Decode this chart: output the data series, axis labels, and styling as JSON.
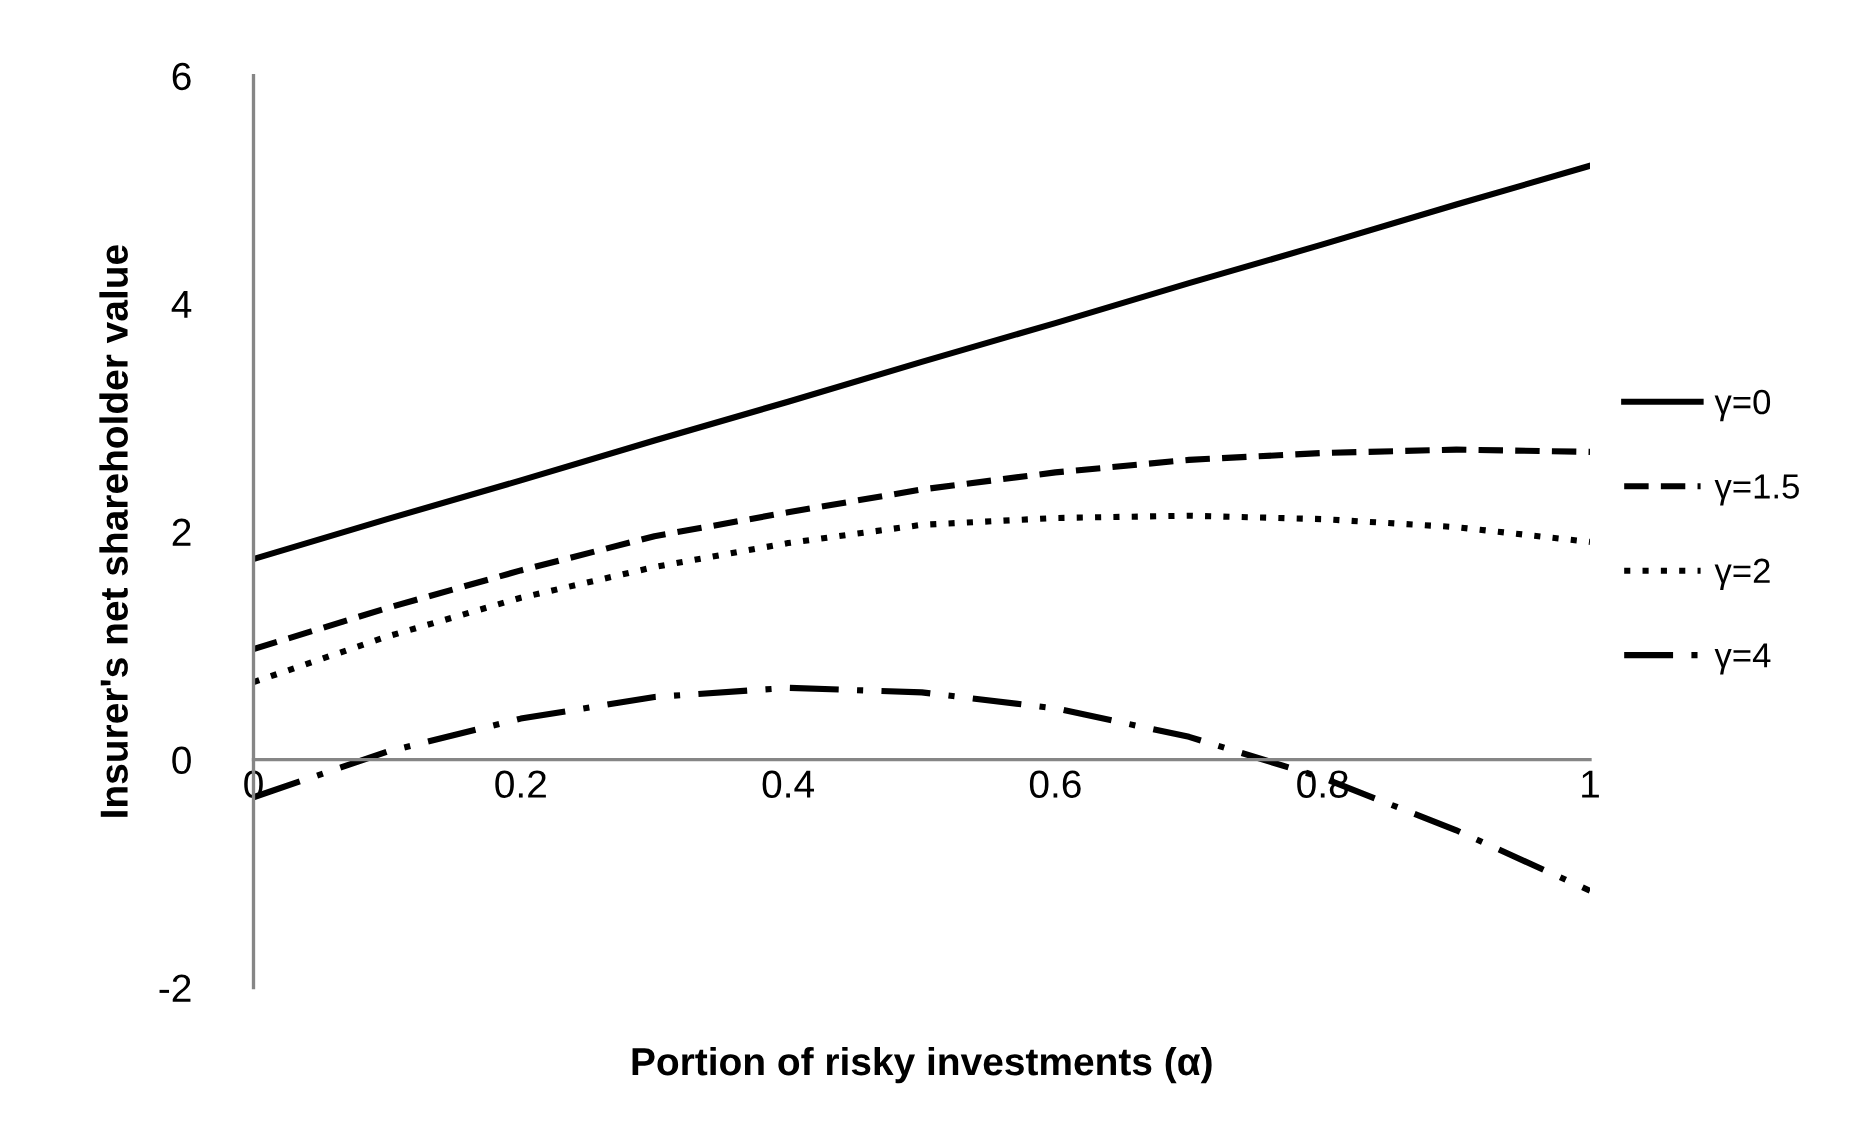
{
  "chart_data": {
    "type": "line",
    "xlabel": "Portion of risky investments (α)",
    "ylabel": "Insurer's net shareholder value",
    "x": [
      0,
      0.1,
      0.2,
      0.3,
      0.4,
      0.5,
      0.6,
      0.7,
      0.8,
      0.9,
      1
    ],
    "xlim": [
      0,
      1
    ],
    "xticks": [
      {
        "value": 0,
        "label": "0"
      },
      0.2,
      0.4,
      0.6,
      0.8,
      {
        "value": 1,
        "label": "1"
      }
    ],
    "ylim": [
      -2,
      6
    ],
    "yticks": [
      -2,
      0,
      2,
      4,
      6
    ],
    "grid": false,
    "legend": "right",
    "marker": "none",
    "series": [
      {
        "name": "γ=0",
        "color": "#000000",
        "line_style": "solid",
        "values": [
          1.76,
          2.11,
          2.45,
          2.8,
          3.14,
          3.49,
          3.83,
          4.18,
          4.52,
          4.87,
          5.21
        ]
      },
      {
        "name": "γ=1.5",
        "color": "#000000",
        "line_style": "dashed",
        "values": [
          0.97,
          1.33,
          1.66,
          1.96,
          2.17,
          2.37,
          2.52,
          2.63,
          2.69,
          2.72,
          2.7
        ]
      },
      {
        "name": "γ=2",
        "color": "#000000",
        "line_style": "dotted",
        "values": [
          0.68,
          1.08,
          1.42,
          1.69,
          1.9,
          2.06,
          2.12,
          2.14,
          2.11,
          2.04,
          1.91
        ]
      },
      {
        "name": "γ=4",
        "color": "#000000",
        "line_style": "dashdot",
        "values": [
          -0.33,
          0.07,
          0.36,
          0.55,
          0.63,
          0.59,
          0.45,
          0.2,
          -0.16,
          -0.62,
          -1.15
        ]
      }
    ]
  }
}
